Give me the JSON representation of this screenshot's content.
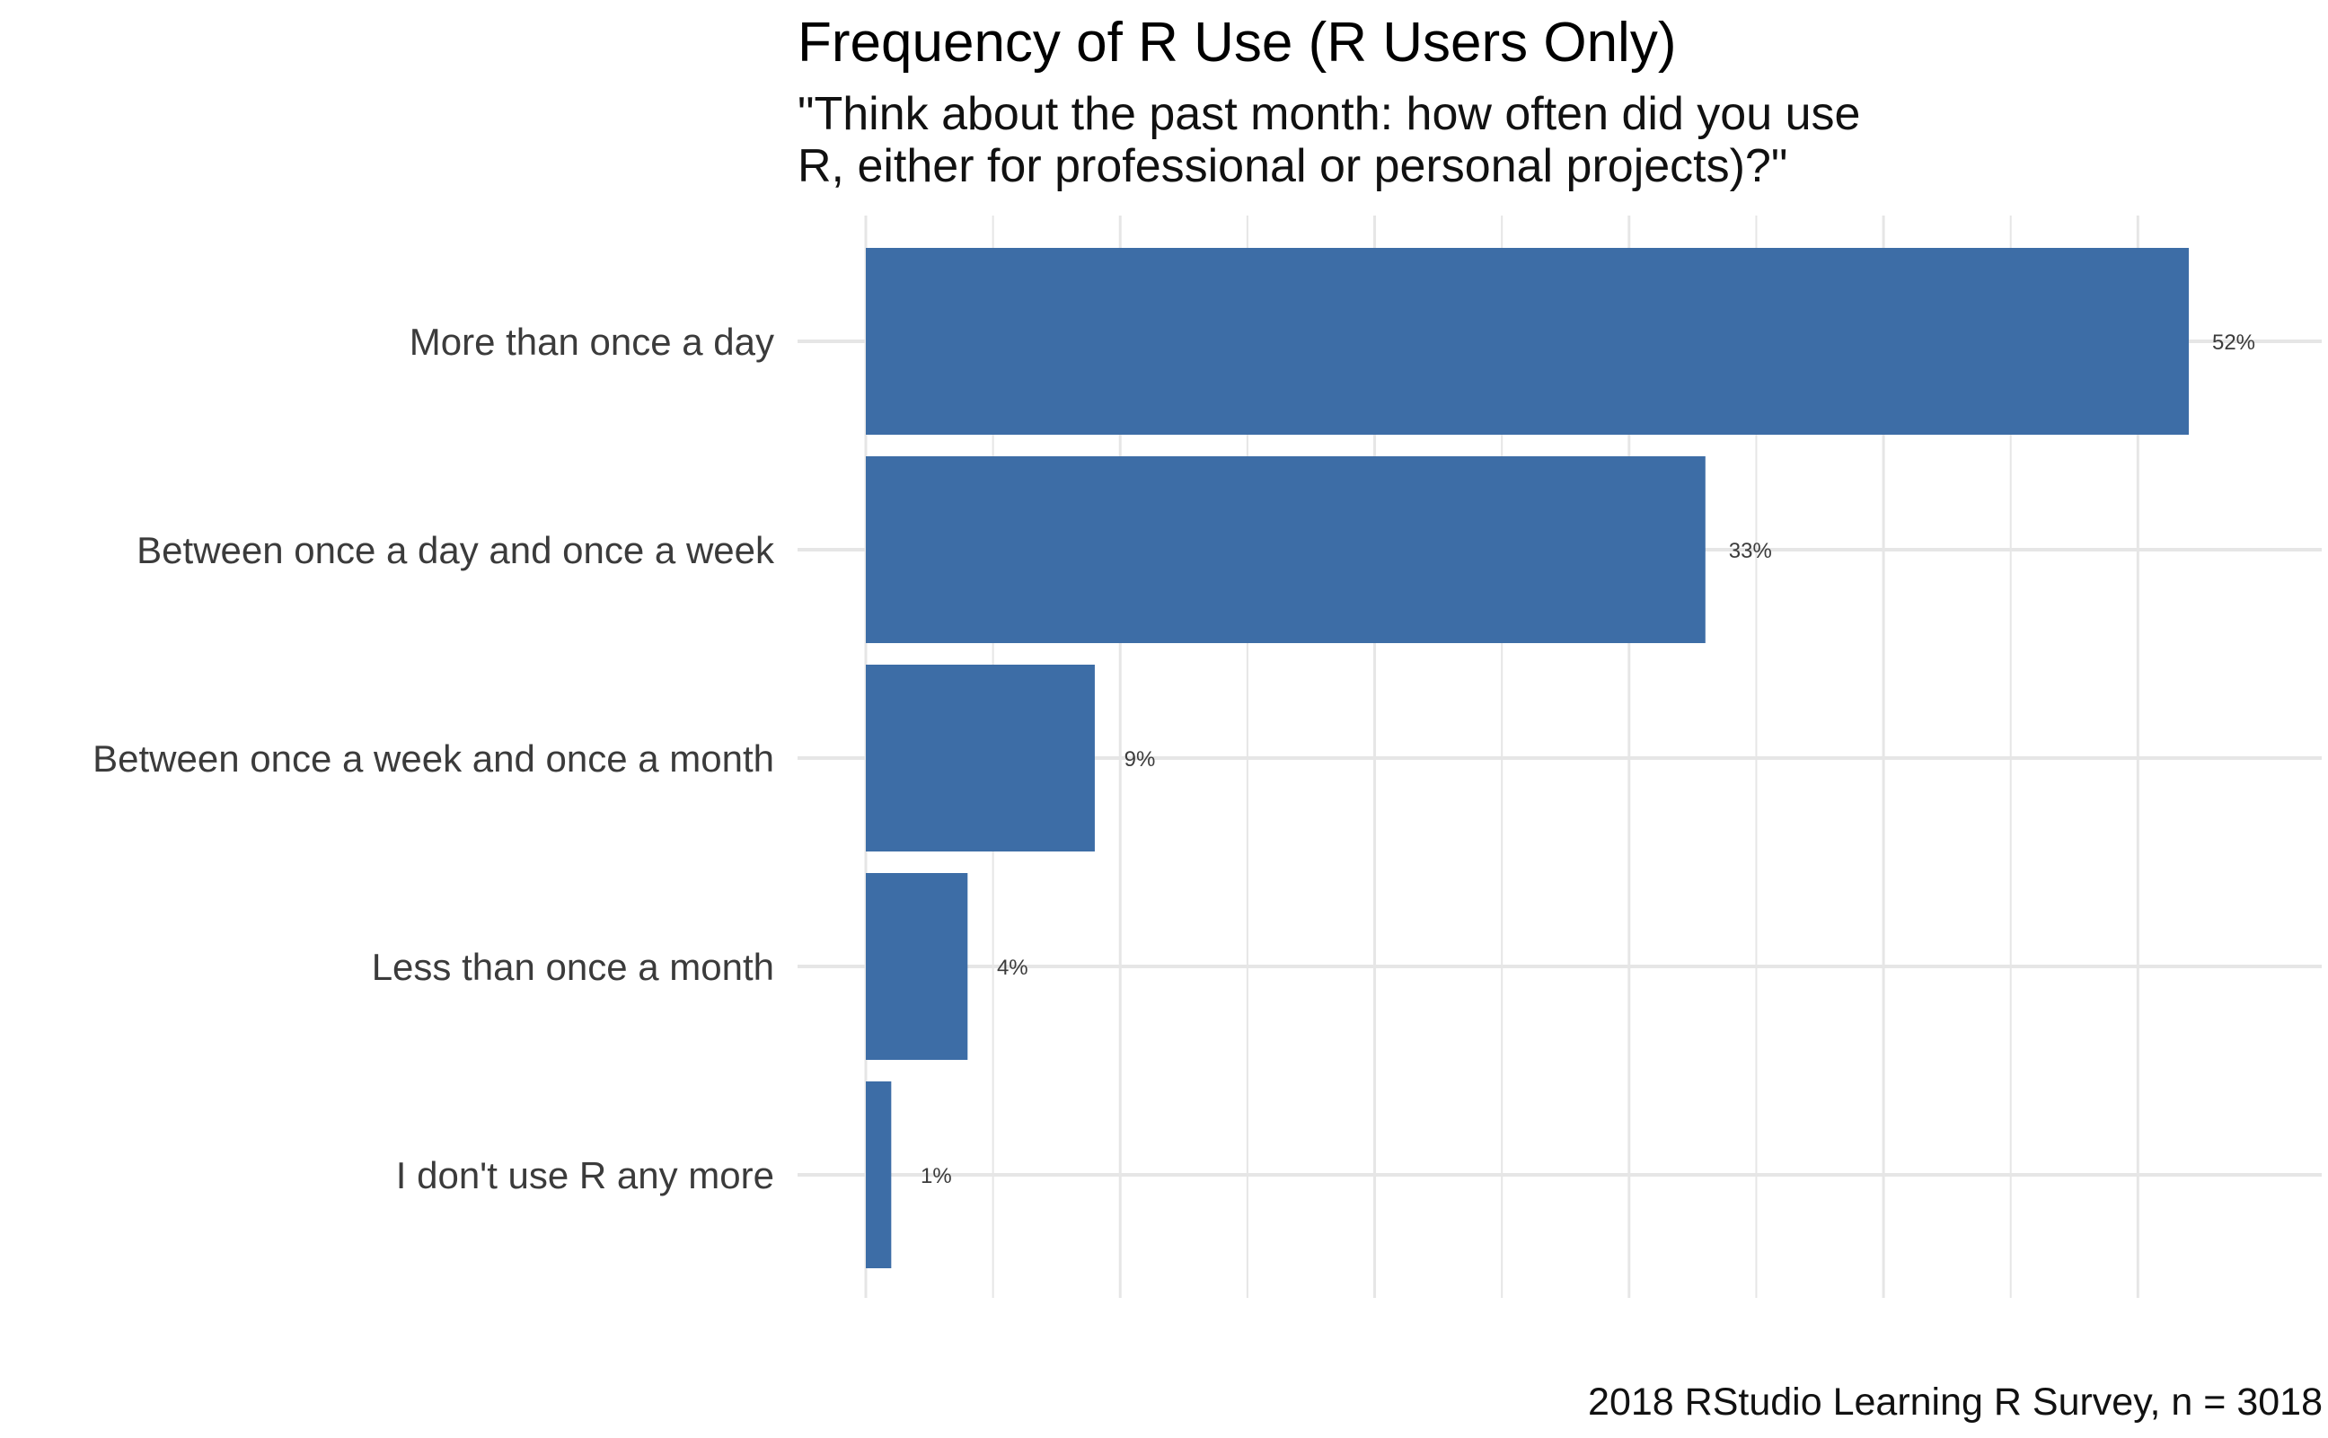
{
  "chart_data": {
    "type": "bar",
    "orientation": "horizontal",
    "title": "Frequency of R Use (R Users Only)",
    "subtitle": "\"Think about the past month: how often did you use\nR, either for professional or personal projects)?\"",
    "caption": "2018 RStudio Learning R Survey, n = 3018",
    "categories": [
      "More than once a day",
      "Between once a day and once a week",
      "Between once a week and once a month",
      "Less than once a month",
      "I don't use R any more"
    ],
    "values": [
      52,
      33,
      9,
      4,
      1
    ],
    "value_labels": [
      "52%",
      "33%",
      "9%",
      "4%",
      "1%"
    ],
    "xlim": [
      0,
      57
    ],
    "grid": true,
    "x_tick_labels_shown": false,
    "bar_color": "#3D6DA6",
    "grid_color": "#E6E6E6"
  }
}
